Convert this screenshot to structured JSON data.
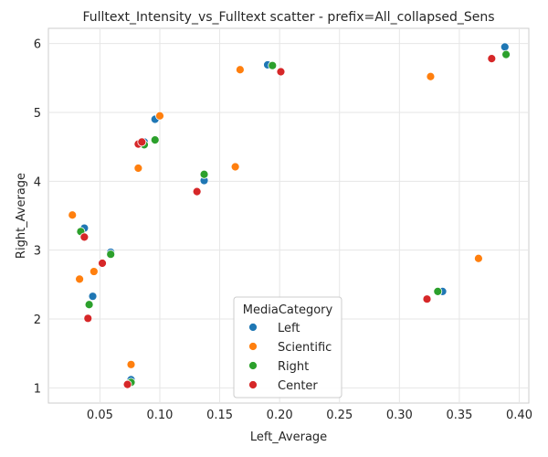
{
  "chart_data": {
    "type": "scatter",
    "title": "Fulltext_Intensity_vs_Fulltext scatter - prefix=All_collapsed_Sens",
    "xlabel": "Left_Average",
    "ylabel": "Right_Average",
    "xlim": [
      0.007,
      0.408
    ],
    "ylim": [
      0.78,
      6.22
    ],
    "xticks": [
      "0.05",
      "0.10",
      "0.15",
      "0.20",
      "0.25",
      "0.30",
      "0.35",
      "0.40"
    ],
    "yticks": [
      "1",
      "2",
      "3",
      "4",
      "5",
      "6"
    ],
    "grid": true,
    "legend": {
      "title": "MediaCategory",
      "placement": "lower-center"
    },
    "series": [
      {
        "name": "Left",
        "color": "#1f77b4",
        "points": [
          {
            "x": 0.388,
            "y": 5.95
          },
          {
            "x": 0.19,
            "y": 5.69
          },
          {
            "x": 0.096,
            "y": 4.9
          },
          {
            "x": 0.087,
            "y": 4.57
          },
          {
            "x": 0.137,
            "y": 4.01
          },
          {
            "x": 0.037,
            "y": 3.32
          },
          {
            "x": 0.059,
            "y": 2.97
          },
          {
            "x": 0.044,
            "y": 2.33
          },
          {
            "x": 0.336,
            "y": 2.4
          },
          {
            "x": 0.076,
            "y": 1.12
          }
        ]
      },
      {
        "name": "Scientific",
        "color": "#ff7f0e",
        "points": [
          {
            "x": 0.167,
            "y": 5.62
          },
          {
            "x": 0.326,
            "y": 5.52
          },
          {
            "x": 0.1,
            "y": 4.95
          },
          {
            "x": 0.082,
            "y": 4.19
          },
          {
            "x": 0.163,
            "y": 4.21
          },
          {
            "x": 0.027,
            "y": 3.51
          },
          {
            "x": 0.045,
            "y": 2.69
          },
          {
            "x": 0.033,
            "y": 2.58
          },
          {
            "x": 0.366,
            "y": 2.88
          },
          {
            "x": 0.076,
            "y": 1.34
          }
        ]
      },
      {
        "name": "Right",
        "color": "#2ca02c",
        "points": [
          {
            "x": 0.389,
            "y": 5.84
          },
          {
            "x": 0.194,
            "y": 5.68
          },
          {
            "x": 0.096,
            "y": 4.6
          },
          {
            "x": 0.087,
            "y": 4.53
          },
          {
            "x": 0.137,
            "y": 4.1
          },
          {
            "x": 0.034,
            "y": 3.27
          },
          {
            "x": 0.059,
            "y": 2.94
          },
          {
            "x": 0.041,
            "y": 2.21
          },
          {
            "x": 0.332,
            "y": 2.4
          },
          {
            "x": 0.076,
            "y": 1.08
          }
        ]
      },
      {
        "name": "Center",
        "color": "#d62728",
        "points": [
          {
            "x": 0.377,
            "y": 5.78
          },
          {
            "x": 0.201,
            "y": 5.59
          },
          {
            "x": 0.082,
            "y": 4.54
          },
          {
            "x": 0.085,
            "y": 4.57
          },
          {
            "x": 0.131,
            "y": 3.85
          },
          {
            "x": 0.037,
            "y": 3.19
          },
          {
            "x": 0.052,
            "y": 2.81
          },
          {
            "x": 0.04,
            "y": 2.01
          },
          {
            "x": 0.323,
            "y": 2.29
          },
          {
            "x": 0.073,
            "y": 1.05
          }
        ]
      }
    ]
  }
}
